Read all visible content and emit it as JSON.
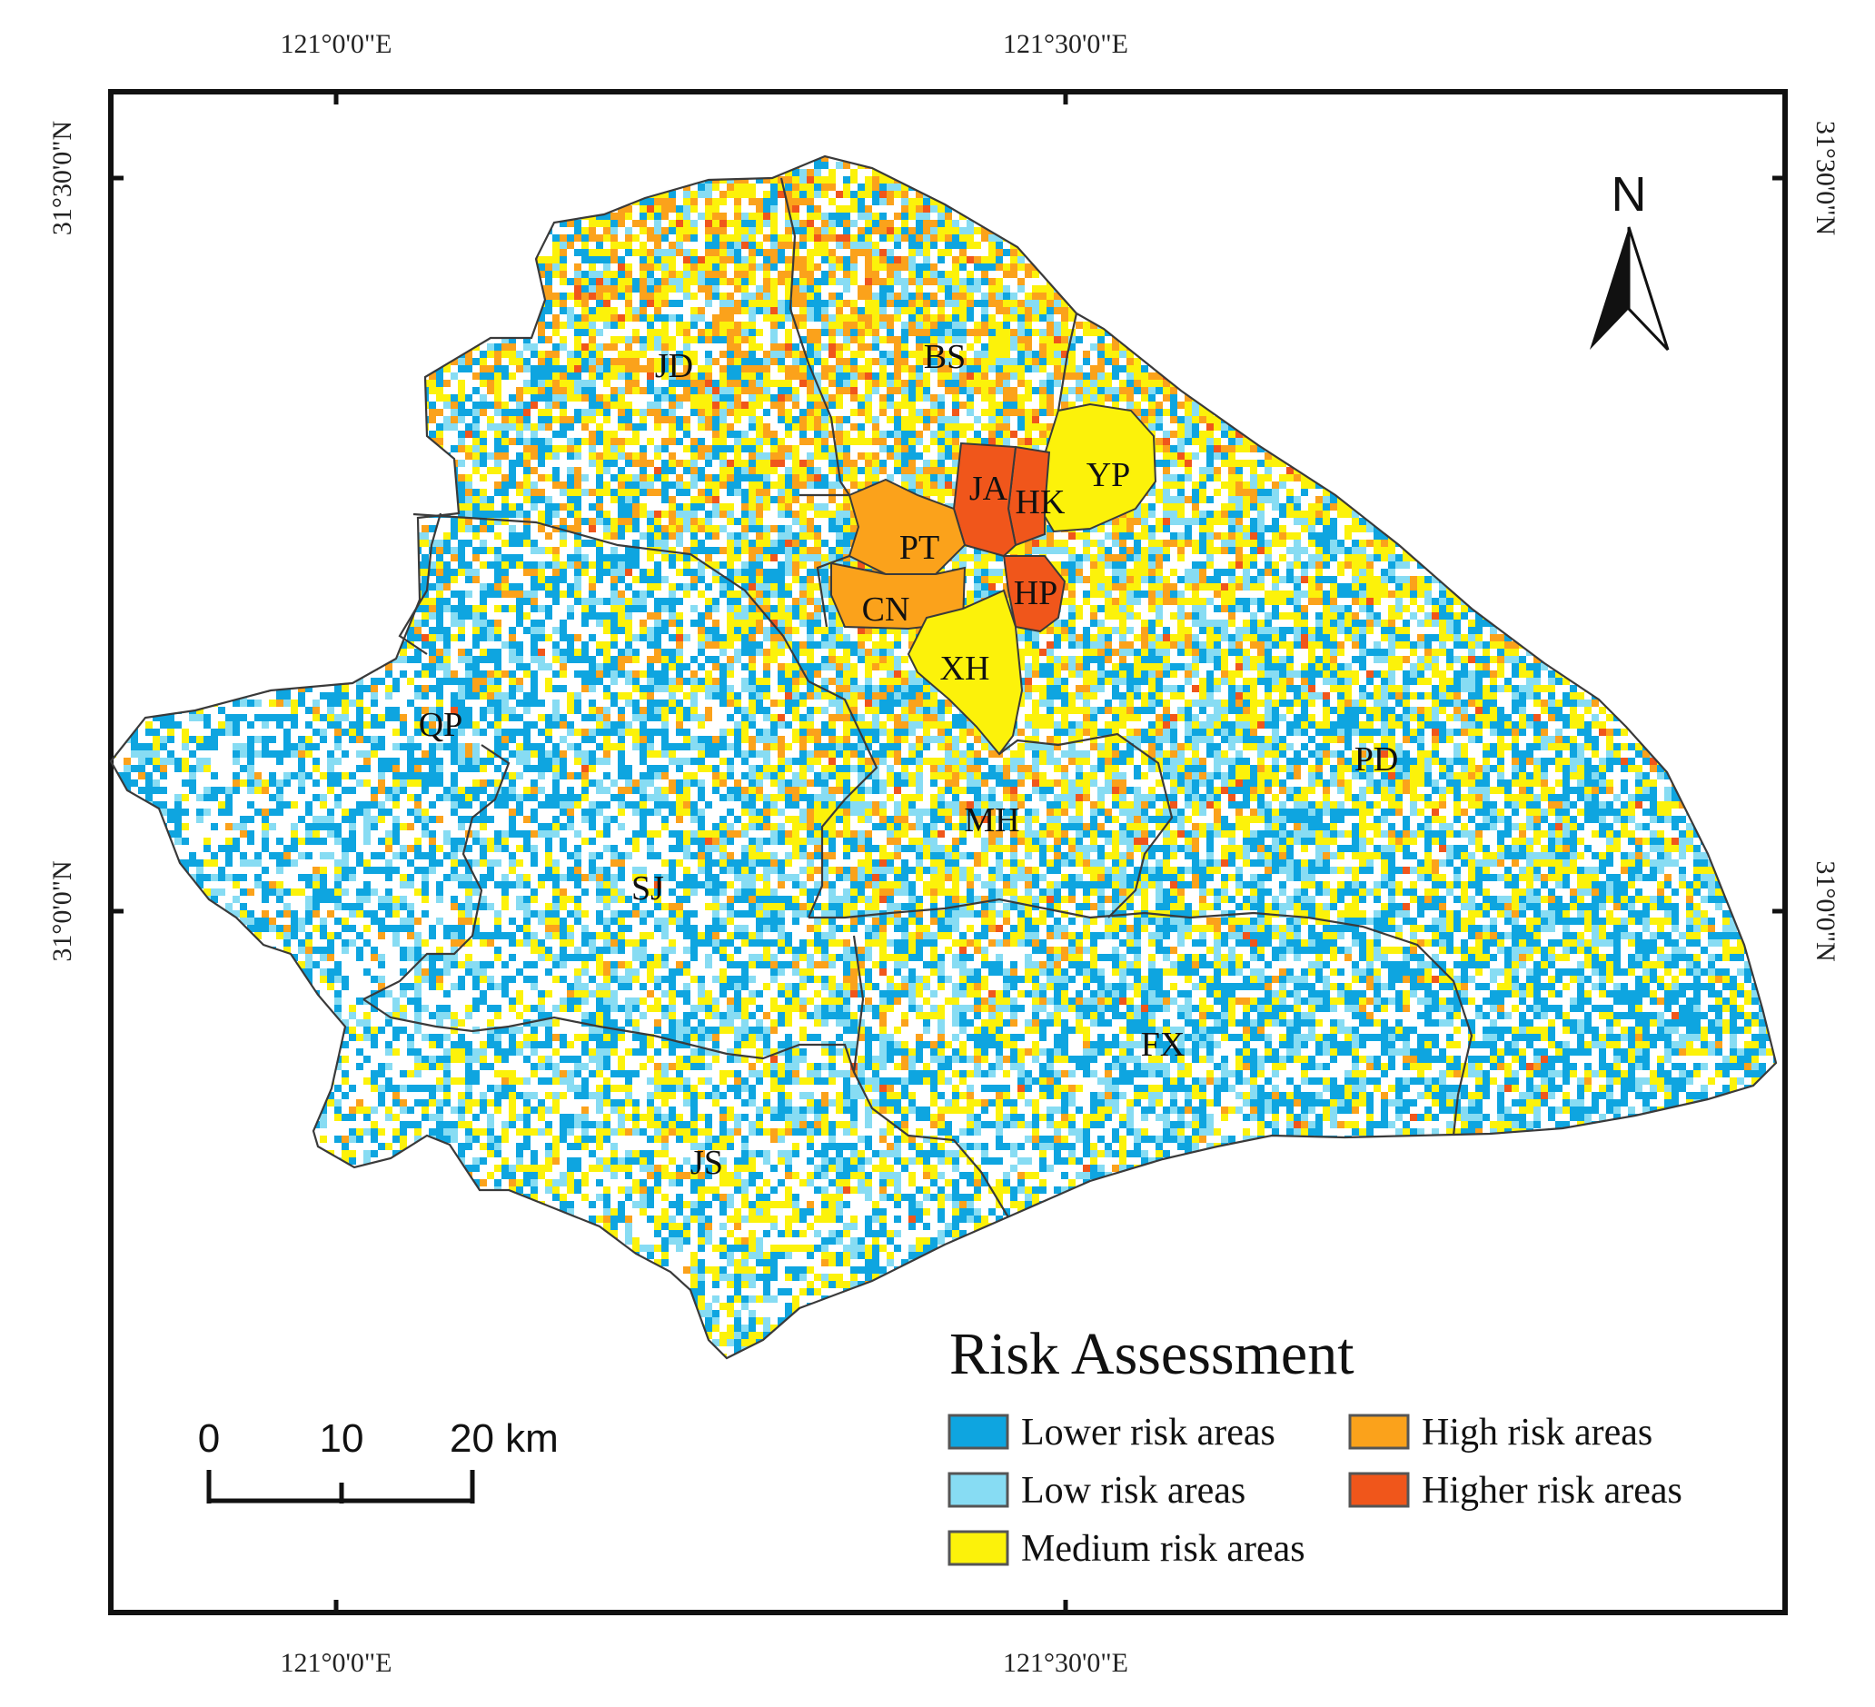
{
  "coordinates": {
    "top_left_lon": "121°0'0\"E",
    "top_right_lon": "121°30'0\"E",
    "bottom_left_lon": "121°0'0\"E",
    "bottom_right_lon": "121°30'0\"E",
    "left_upper_lat": "31°30'0\"N",
    "left_lower_lat": "31°0'0\"N",
    "right_upper_lat": "31°30'0\"N",
    "right_lower_lat": "31°0'0\"N"
  },
  "districts": {
    "jd": "JD",
    "bs": "BS",
    "yp": "YP",
    "ja": "JA",
    "hk": "HK",
    "pt": "PT",
    "hp": "HP",
    "cn": "CN",
    "xh": "XH",
    "qp": "QP",
    "pd": "PD",
    "mh": "MH",
    "sj": "SJ",
    "fx": "FX",
    "js": "JS"
  },
  "north_arrow": {
    "label": "N"
  },
  "scale_bar": {
    "label_0": "0",
    "label_10": "10",
    "label_20": "20 km"
  },
  "legend": {
    "title": "Risk Assessment",
    "lower": "Lower risk areas",
    "low": "Low risk areas",
    "medium": "Medium risk areas",
    "high": "High risk areas",
    "higher": "Higher risk areas"
  },
  "colors": {
    "lower": "#0ea5e0",
    "low": "#87dcf3",
    "medium": "#fcf20a",
    "high": "#fba21b",
    "higher": "#f0561b"
  }
}
